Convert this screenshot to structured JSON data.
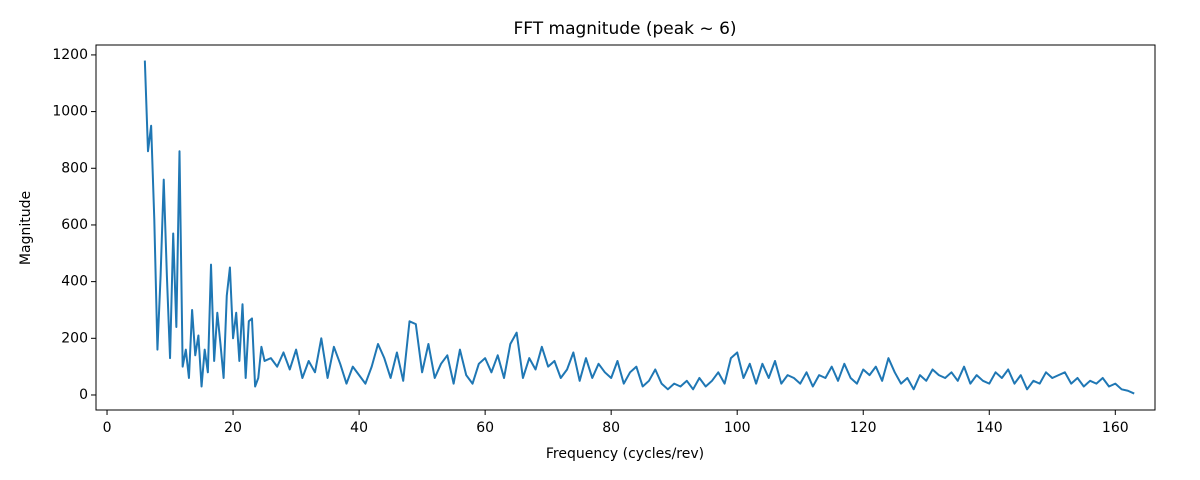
{
  "chart_data": {
    "type": "line",
    "title": "FFT magnitude (peak ~ 6)",
    "x_label": "Frequency (cycles/rev)",
    "y_label": "Magnitude",
    "color": "#1f77b4",
    "grid": false,
    "x": [
      6,
      6.5,
      7,
      7.5,
      8,
      8.5,
      9,
      9.5,
      10,
      10.5,
      11,
      11.5,
      12,
      12.5,
      13,
      13.5,
      14,
      14.5,
      15,
      15.5,
      16,
      16.5,
      17,
      17.5,
      18,
      18.5,
      19,
      19.5,
      20,
      20.5,
      21,
      21.5,
      22,
      22.5,
      23,
      23.5,
      24,
      24.5,
      25,
      26,
      27,
      28,
      29,
      30,
      31,
      32,
      33,
      34,
      35,
      36,
      37,
      38,
      39,
      40,
      41,
      42,
      43,
      44,
      45,
      46,
      47,
      48,
      49,
      50,
      51,
      52,
      53,
      54,
      55,
      56,
      57,
      58,
      59,
      60,
      61,
      62,
      63,
      64,
      65,
      66,
      67,
      68,
      69,
      70,
      71,
      72,
      73,
      74,
      75,
      76,
      77,
      78,
      79,
      80,
      81,
      82,
      83,
      84,
      85,
      86,
      87,
      88,
      89,
      90,
      91,
      92,
      93,
      94,
      95,
      96,
      97,
      98,
      99,
      100,
      101,
      102,
      103,
      104,
      105,
      106,
      107,
      108,
      109,
      110,
      111,
      112,
      113,
      114,
      115,
      116,
      117,
      118,
      119,
      120,
      121,
      122,
      123,
      124,
      125,
      126,
      127,
      128,
      129,
      130,
      131,
      132,
      133,
      134,
      135,
      136,
      137,
      138,
      139,
      140,
      141,
      142,
      143,
      144,
      145,
      146,
      147,
      148,
      149,
      150,
      151,
      152,
      153,
      154,
      155,
      156,
      157,
      158,
      159,
      160,
      161,
      162,
      163
    ],
    "values": [
      1180,
      860,
      950,
      620,
      160,
      420,
      760,
      420,
      130,
      570,
      240,
      860,
      100,
      160,
      60,
      300,
      140,
      210,
      30,
      160,
      80,
      460,
      120,
      290,
      180,
      60,
      350,
      450,
      200,
      290,
      120,
      320,
      60,
      260,
      270,
      30,
      60,
      170,
      120,
      130,
      100,
      150,
      90,
      160,
      60,
      120,
      80,
      200,
      60,
      170,
      110,
      40,
      100,
      70,
      40,
      100,
      180,
      130,
      60,
      150,
      50,
      260,
      250,
      80,
      180,
      60,
      110,
      140,
      40,
      160,
      70,
      40,
      110,
      130,
      80,
      140,
      60,
      180,
      220,
      60,
      130,
      90,
      170,
      100,
      120,
      60,
      90,
      150,
      50,
      130,
      60,
      110,
      80,
      60,
      120,
      40,
      80,
      100,
      30,
      50,
      90,
      40,
      20,
      40,
      30,
      50,
      20,
      60,
      30,
      50,
      80,
      40,
      130,
      150,
      60,
      110,
      40,
      110,
      60,
      120,
      40,
      70,
      60,
      40,
      80,
      30,
      70,
      60,
      100,
      50,
      110,
      60,
      40,
      90,
      70,
      100,
      50,
      130,
      80,
      40,
      60,
      20,
      70,
      50,
      90,
      70,
      60,
      80,
      50,
      100,
      40,
      70,
      50,
      40,
      80,
      60,
      90,
      40,
      70,
      20,
      50,
      40,
      80,
      60,
      70,
      80,
      40,
      60,
      30,
      50,
      40,
      60,
      30,
      40,
      20,
      15,
      5
    ],
    "xlim": [
      -1.75,
      166.3
    ],
    "ylim": [
      -53,
      1235
    ],
    "xticks": [
      0,
      20,
      40,
      60,
      80,
      100,
      120,
      140,
      160
    ],
    "yticks": [
      0,
      200,
      400,
      600,
      800,
      1000,
      1200
    ]
  }
}
